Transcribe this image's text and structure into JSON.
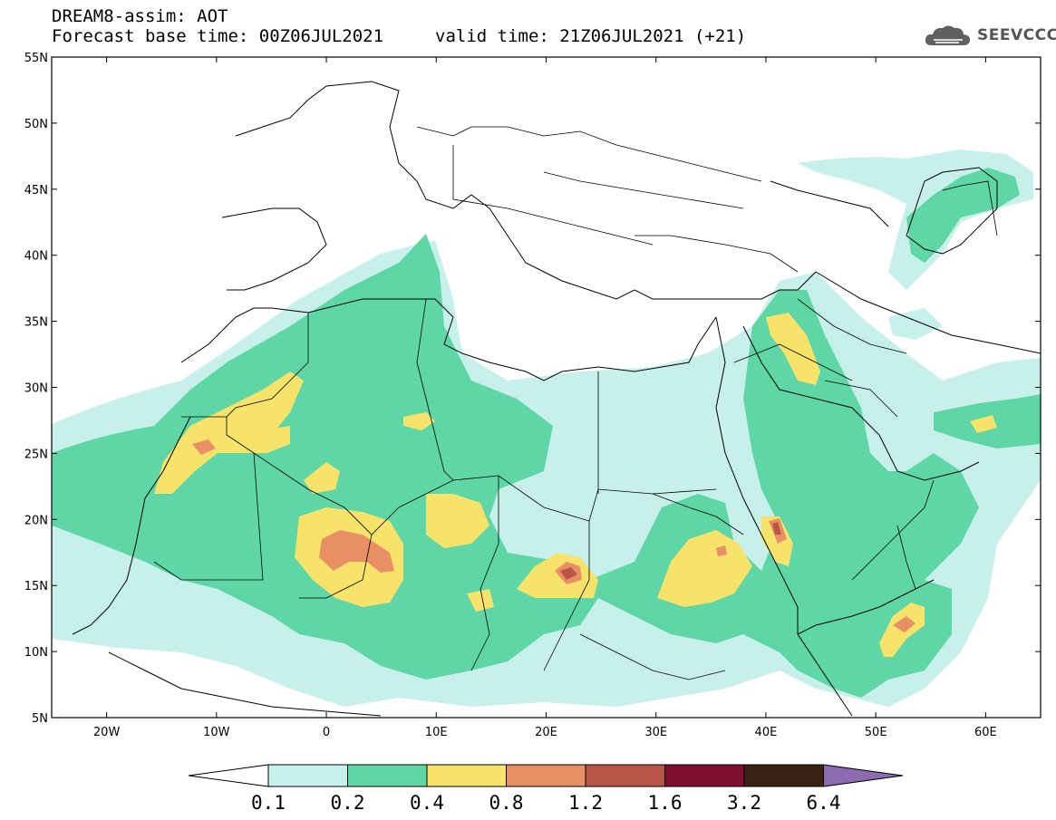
{
  "header": {
    "line1": "DREAM8-assim: AOT",
    "line2": "Forecast base time: 00Z06JUL2021",
    "valid": "valid time: 21Z06JUL2021 (+21)",
    "logo_text": "SEEVCCC"
  },
  "map": {
    "lat_labels": [
      "55N",
      "50N",
      "45N",
      "40N",
      "35N",
      "30N",
      "25N",
      "20N",
      "15N",
      "10N",
      "5N"
    ],
    "lon_labels": [
      "20W",
      "10W",
      "0",
      "10E",
      "20E",
      "30E",
      "40E",
      "50E",
      "60E"
    ],
    "extent": {
      "lon": [
        -25,
        65
      ],
      "lat": [
        5,
        55
      ]
    }
  },
  "colorbar": {
    "labels": [
      "0.1",
      "0.2",
      "0.4",
      "0.8",
      "1.2",
      "1.6",
      "3.2",
      "6.4"
    ],
    "colors": [
      "#c8f0ea",
      "#5ed6a6",
      "#f7e36a",
      "#e98f66",
      "#b85548",
      "#7d1030",
      "#3b2214",
      "#8c6bb0"
    ],
    "under_color": "#ffffff"
  }
}
